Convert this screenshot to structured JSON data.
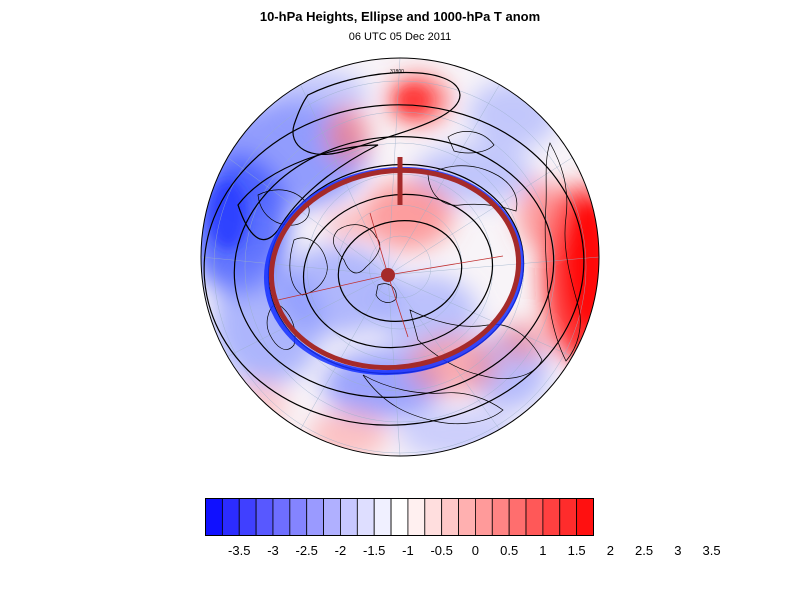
{
  "title": "10-hPa Heights, Ellipse and 1000-hPa T anom",
  "subtitle": "06 UTC 05 Dec 2011",
  "contour_label": "31800",
  "colorbar": {
    "colors": [
      "#1010ff",
      "#2c2cff",
      "#4040ff",
      "#5858ff",
      "#6e6eff",
      "#8484ff",
      "#9a9aff",
      "#b0b0ff",
      "#c8c8ff",
      "#dedeff",
      "#f0f0ff",
      "#ffffff",
      "#fff0f0",
      "#ffdede",
      "#ffc8c8",
      "#ffb0b0",
      "#ff9a9a",
      "#ff8484",
      "#ff6e6e",
      "#ff5858",
      "#ff4040",
      "#ff2c2c",
      "#ff1010"
    ],
    "labels": [
      "-3.5",
      "-3",
      "-2.5",
      "-2",
      "-1.5",
      "-1",
      "-0.5",
      "0",
      "0.5",
      "1",
      "1.5",
      "2",
      "2.5",
      "3",
      "3.5"
    ]
  },
  "colors": {
    "ellipse": "#a52a2a",
    "contour": "#000000",
    "warm": "#ff3030",
    "cold": "#3050ff"
  }
}
